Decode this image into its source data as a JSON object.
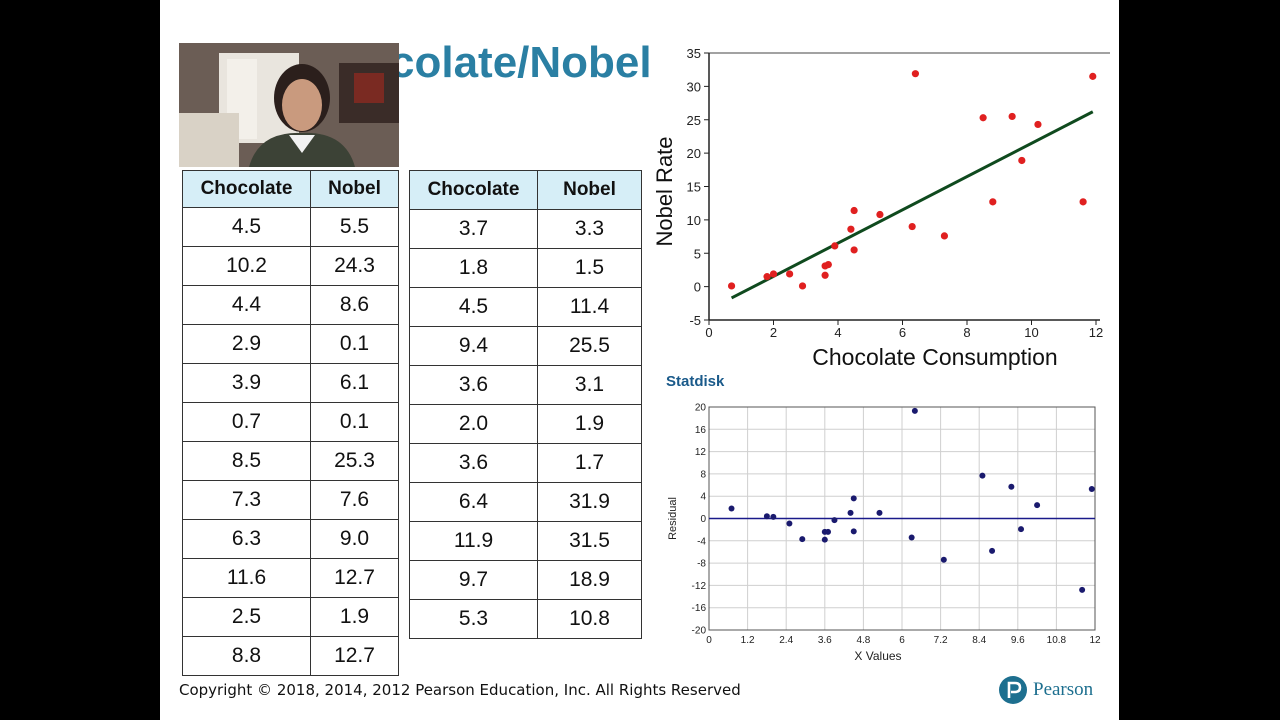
{
  "slide_title": "colate/Nobel",
  "table_left": {
    "headers": [
      "Chocolate",
      "Nobel"
    ],
    "rows": [
      [
        "4.5",
        "5.5"
      ],
      [
        "10.2",
        "24.3"
      ],
      [
        "4.4",
        "8.6"
      ],
      [
        "2.9",
        "0.1"
      ],
      [
        "3.9",
        "6.1"
      ],
      [
        "0.7",
        "0.1"
      ],
      [
        "8.5",
        "25.3"
      ],
      [
        "7.3",
        "7.6"
      ],
      [
        "6.3",
        "9.0"
      ],
      [
        "11.6",
        "12.7"
      ],
      [
        "2.5",
        "1.9"
      ],
      [
        "8.8",
        "12.7"
      ]
    ]
  },
  "table_right": {
    "headers": [
      "Chocolate",
      "Nobel"
    ],
    "rows": [
      [
        "3.7",
        "3.3"
      ],
      [
        "1.8",
        "1.5"
      ],
      [
        "4.5",
        "11.4"
      ],
      [
        "9.4",
        "25.5"
      ],
      [
        "3.6",
        "3.1"
      ],
      [
        "2.0",
        "1.9"
      ],
      [
        "3.6",
        "1.7"
      ],
      [
        "6.4",
        "31.9"
      ],
      [
        "11.9",
        "31.5"
      ],
      [
        "9.7",
        "18.9"
      ],
      [
        "5.3",
        "10.8"
      ]
    ]
  },
  "statdisk_label": "Statdisk",
  "copyright": "Copyright © 2018, 2014, 2012 Pearson Education, Inc. All Rights Reserved",
  "brand": "Pearson",
  "colors": {
    "title": "#2a7fa3",
    "header_fill": "#d6eef7",
    "scatter_point": "#e02020",
    "regression_line": "#0f4a1e",
    "residual_point": "#1a1a6e",
    "zero_line": "#1a1a8a"
  },
  "chart_data": [
    {
      "type": "scatter",
      "title": "",
      "xlabel": "Chocolate Consumption",
      "ylabel": "Nobel Rate",
      "xlim": [
        0,
        12
      ],
      "ylim": [
        -5,
        35
      ],
      "xticks": [
        0,
        2,
        4,
        6,
        8,
        10,
        12
      ],
      "yticks": [
        -5,
        0,
        5,
        10,
        15,
        20,
        25,
        30,
        35
      ],
      "grid": false,
      "regression_line": {
        "x": [
          0.7,
          11.9
        ],
        "y": [
          -1.7,
          26.2
        ]
      },
      "points": [
        {
          "x": 0.7,
          "y": 0.1
        },
        {
          "x": 1.8,
          "y": 1.5
        },
        {
          "x": 2.0,
          "y": 1.9
        },
        {
          "x": 2.5,
          "y": 1.9
        },
        {
          "x": 2.9,
          "y": 0.1
        },
        {
          "x": 3.6,
          "y": 1.7
        },
        {
          "x": 3.6,
          "y": 3.1
        },
        {
          "x": 3.7,
          "y": 3.3
        },
        {
          "x": 3.9,
          "y": 6.1
        },
        {
          "x": 4.4,
          "y": 8.6
        },
        {
          "x": 4.5,
          "y": 5.5
        },
        {
          "x": 4.5,
          "y": 11.4
        },
        {
          "x": 5.3,
          "y": 10.8
        },
        {
          "x": 6.3,
          "y": 9.0
        },
        {
          "x": 6.4,
          "y": 31.9
        },
        {
          "x": 7.3,
          "y": 7.6
        },
        {
          "x": 8.5,
          "y": 25.3
        },
        {
          "x": 8.8,
          "y": 12.7
        },
        {
          "x": 9.4,
          "y": 25.5
        },
        {
          "x": 9.7,
          "y": 18.9
        },
        {
          "x": 10.2,
          "y": 24.3
        },
        {
          "x": 11.6,
          "y": 12.7
        },
        {
          "x": 11.9,
          "y": 31.5
        }
      ]
    },
    {
      "type": "scatter",
      "title": "",
      "xlabel": "X Values",
      "ylabel": "Residual",
      "xlim": [
        0,
        12
      ],
      "ylim": [
        -20,
        20
      ],
      "xticks": [
        0,
        1.2,
        2.4,
        3.6,
        4.8,
        6,
        7.2,
        8.4,
        9.6,
        10.8,
        12
      ],
      "yticks": [
        -20,
        -16,
        -12,
        -8,
        -4,
        0,
        4,
        8,
        12,
        16,
        20
      ],
      "grid": true,
      "zero_line": 0,
      "points": [
        {
          "x": 0.7,
          "y": 1.8
        },
        {
          "x": 1.8,
          "y": 0.4
        },
        {
          "x": 2.0,
          "y": 0.3
        },
        {
          "x": 2.5,
          "y": -0.9
        },
        {
          "x": 2.9,
          "y": -3.7
        },
        {
          "x": 3.6,
          "y": -3.8
        },
        {
          "x": 3.6,
          "y": -2.4
        },
        {
          "x": 3.7,
          "y": -2.4
        },
        {
          "x": 3.9,
          "y": -0.3
        },
        {
          "x": 4.4,
          "y": 1.0
        },
        {
          "x": 4.5,
          "y": -2.3
        },
        {
          "x": 4.5,
          "y": 3.6
        },
        {
          "x": 5.3,
          "y": 1.0
        },
        {
          "x": 6.3,
          "y": -3.4
        },
        {
          "x": 6.4,
          "y": 19.3
        },
        {
          "x": 7.3,
          "y": -7.4
        },
        {
          "x": 8.5,
          "y": 7.7
        },
        {
          "x": 8.8,
          "y": -5.8
        },
        {
          "x": 9.4,
          "y": 5.7
        },
        {
          "x": 9.7,
          "y": -1.9
        },
        {
          "x": 10.2,
          "y": 2.4
        },
        {
          "x": 11.6,
          "y": -12.8
        },
        {
          "x": 11.9,
          "y": 5.3
        }
      ]
    }
  ]
}
